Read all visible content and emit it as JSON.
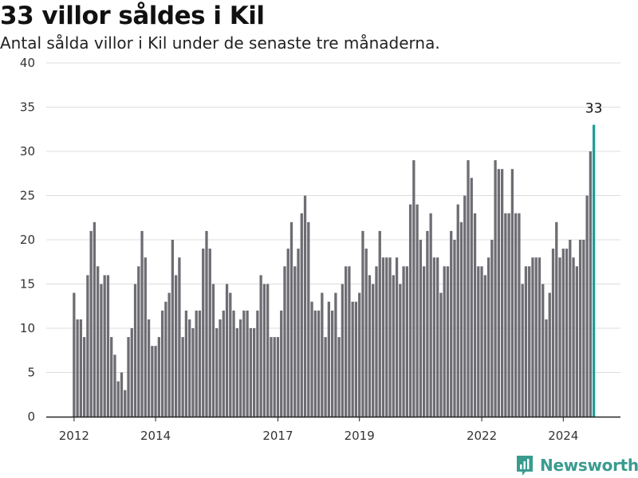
{
  "header": {
    "title": "33 villor såldes i Kil",
    "subtitle": "Antal sålda villor i Kil under de senaste tre månaderna."
  },
  "brand": {
    "name": "Newsworthy"
  },
  "colors": {
    "bar": "#6e6d73",
    "highlight": "#1f9e96",
    "grid": "#dddddd",
    "axis": "#222222"
  },
  "chart_data": {
    "type": "bar",
    "ylim": [
      0,
      40
    ],
    "yticks": [
      0,
      5,
      10,
      15,
      20,
      25,
      30,
      35,
      40
    ],
    "grid": true,
    "xticks": [
      {
        "label": "2012",
        "index": 0
      },
      {
        "label": "2014",
        "index": 24
      },
      {
        "label": "2017",
        "index": 60
      },
      {
        "label": "2019",
        "index": 84
      },
      {
        "label": "2022",
        "index": 120
      },
      {
        "label": "2024",
        "index": 144
      }
    ],
    "start_month": "2012-01",
    "values": [
      14,
      11,
      11,
      9,
      16,
      21,
      22,
      17,
      15,
      16,
      16,
      9,
      7,
      4,
      5,
      3,
      9,
      10,
      15,
      17,
      21,
      18,
      11,
      8,
      8,
      9,
      12,
      13,
      14,
      20,
      16,
      18,
      9,
      12,
      11,
      10,
      12,
      12,
      19,
      21,
      19,
      15,
      10,
      11,
      12,
      15,
      14,
      12,
      10,
      11,
      12,
      12,
      10,
      10,
      12,
      16,
      15,
      15,
      9,
      9,
      9,
      12,
      17,
      19,
      22,
      17,
      19,
      23,
      25,
      22,
      13,
      12,
      12,
      14,
      9,
      13,
      12,
      14,
      9,
      15,
      17,
      17,
      13,
      13,
      14,
      21,
      19,
      16,
      15,
      17,
      21,
      18,
      18,
      18,
      16,
      18,
      15,
      17,
      17,
      24,
      29,
      24,
      20,
      17,
      21,
      23,
      18,
      18,
      14,
      17,
      17,
      21,
      20,
      24,
      22,
      25,
      29,
      27,
      23,
      17,
      17,
      16,
      18,
      20,
      29,
      28,
      28,
      23,
      23,
      28,
      23,
      23,
      15,
      17,
      17,
      18,
      18,
      18,
      15,
      11,
      14,
      19,
      22,
      18,
      19,
      19,
      20,
      18,
      17,
      20,
      20,
      25,
      30,
      33
    ],
    "highlight": {
      "index": 153,
      "value": 33,
      "label": "33"
    }
  }
}
